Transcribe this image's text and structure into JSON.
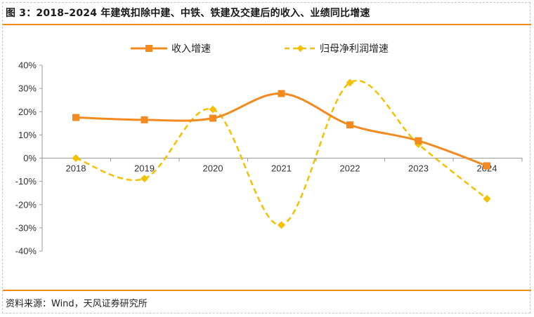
{
  "header": {
    "title": "图 3：2018–2024 年建筑扣除中建、中铁、铁建及交建后的收入、业绩同比增速"
  },
  "footer": {
    "source": "资料来源：Wind，天风证券研究所"
  },
  "colors": {
    "accent": "#f08a1c",
    "revenue": "#f28a1f",
    "profit": "#f5c000"
  },
  "chart_data": {
    "type": "line",
    "title": "图 3：2018–2024 年建筑扣除中建、中铁、铁建及交建后的收入、业绩同比增速",
    "categories": [
      "2018",
      "2019",
      "2020",
      "2021",
      "2022",
      "2023",
      "2024"
    ],
    "y_ticks": [
      "40%",
      "30%",
      "20%",
      "10%",
      "0%",
      "-10%",
      "-20%",
      "-30%",
      "-40%"
    ],
    "ylim": [
      -40,
      40
    ],
    "y_unit": "%",
    "grid": false,
    "legend_position": "top",
    "series": [
      {
        "name": "收入增速",
        "values": [
          17.5,
          16.5,
          17.2,
          27.8,
          14.3,
          7.5,
          -3.3
        ],
        "style": "solid",
        "marker": "square"
      },
      {
        "name": "归母净利润增速",
        "values": [
          0.0,
          -8.8,
          21.0,
          -28.8,
          32.5,
          6.0,
          -17.5
        ],
        "style": "dashed",
        "marker": "diamond"
      }
    ]
  }
}
